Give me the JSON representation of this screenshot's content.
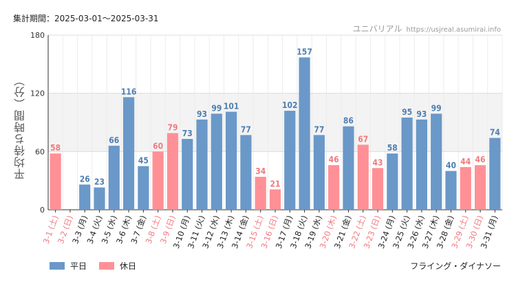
{
  "header": {
    "period_label": "集計期間：2025-03-01～2025-03-31",
    "park_name": "ユニバリアル",
    "site_url": "https://usjreal.asumirai.info"
  },
  "footer": {
    "attraction_name": "フライング・ダイナソー"
  },
  "colors": {
    "weekday": "#6a98c8",
    "holiday": "#ff9096",
    "holiday_text": "#f07a80",
    "weekday_value_text": "#4f7fb3"
  },
  "chart_data": {
    "type": "bar",
    "title": "",
    "ylabel": "平均待ち時間（分）",
    "ylim": [
      0,
      180
    ],
    "yticks": [
      0,
      60,
      120,
      180
    ],
    "grid": true,
    "legend_placement": "bottom-left",
    "legend": [
      {
        "name": "平日",
        "kind": "weekday"
      },
      {
        "name": "休日",
        "kind": "holiday"
      }
    ],
    "categories": [
      "3-1 (土)",
      "3-2 (日)",
      "3-3 (月)",
      "3-4 (火)",
      "3-5 (水)",
      "3-6 (木)",
      "3-7 (金)",
      "3-8 (土)",
      "3-9 (日)",
      "3-10 (月)",
      "3-11 (火)",
      "3-12 (水)",
      "3-13 (木)",
      "3-14 (金)",
      "3-15 (土)",
      "3-16 (日)",
      "3-17 (月)",
      "3-18 (火)",
      "3-19 (水)",
      "3-20 (木)",
      "3-21 (金)",
      "3-22 (土)",
      "3-23 (日)",
      "3-24 (月)",
      "3-25 (火)",
      "3-26 (水)",
      "3-27 (木)",
      "3-28 (金)",
      "3-29 (土)",
      "3-30 (日)",
      "3-31 (月)"
    ],
    "day_kind": [
      "holiday",
      "holiday",
      "weekday",
      "weekday",
      "weekday",
      "weekday",
      "weekday",
      "holiday",
      "holiday",
      "weekday",
      "weekday",
      "weekday",
      "weekday",
      "weekday",
      "holiday",
      "holiday",
      "weekday",
      "weekday",
      "weekday",
      "holiday",
      "weekday",
      "holiday",
      "holiday",
      "weekday",
      "weekday",
      "weekday",
      "weekday",
      "weekday",
      "holiday",
      "holiday",
      "weekday"
    ],
    "values": [
      58,
      null,
      26,
      23,
      66,
      116,
      45,
      60,
      79,
      73,
      93,
      99,
      101,
      77,
      34,
      21,
      102,
      157,
      77,
      46,
      86,
      67,
      43,
      58,
      95,
      93,
      99,
      40,
      44,
      46,
      74
    ]
  }
}
